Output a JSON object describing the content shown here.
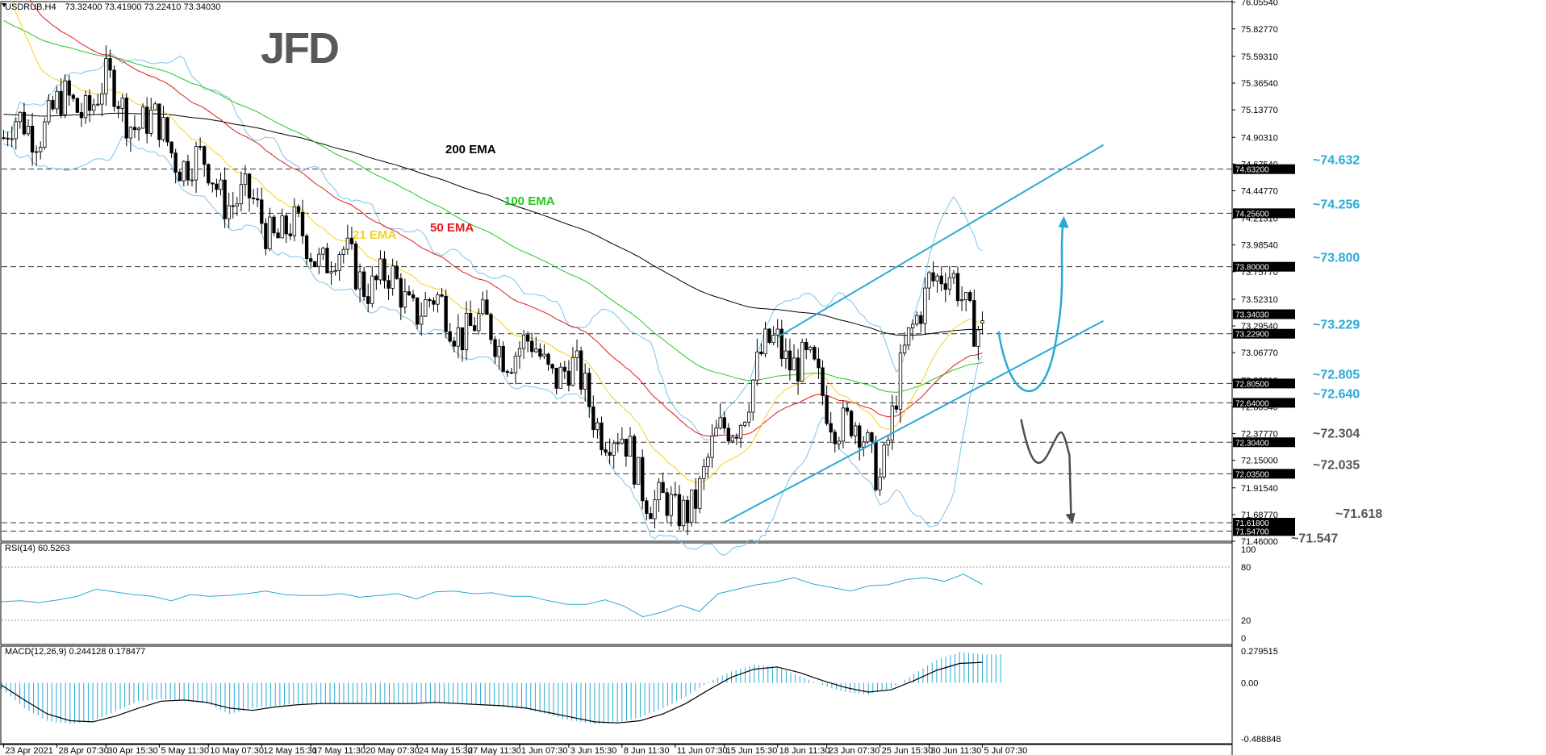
{
  "header": {
    "symbol": "USDRUB,H4",
    "ohlc": "73.32400 73.41900 73.22410 73.34030"
  },
  "logo": {
    "text": "JFD",
    "color": "#58595b"
  },
  "colors": {
    "ema200": "#000000",
    "ema100": "#22c922",
    "ema50": "#e3181b",
    "ema21": "#f2d21d",
    "bollinger": "#7cc3e8",
    "bull": "#ffffff",
    "bear": "#000000",
    "channel": "#29a9d6",
    "level_blue": "#29a9d6",
    "level_dark": "#555555",
    "rsi": "#29a9d6",
    "macd_hist": "#29a9d6",
    "macd_signal": "#000000",
    "dashed": "#333333"
  },
  "chart_data": [
    {
      "type": "candlestick",
      "title": "USDRUB,H4",
      "ylim": [
        71.46,
        76.06
      ],
      "y_ticks": [
        "76.05540",
        "75.82770",
        "75.59310",
        "75.36540",
        "75.13770",
        "74.90310",
        "74.67540",
        "74.44770",
        "74.21310",
        "73.98540",
        "73.75770",
        "73.52310",
        "73.29540",
        "73.06770",
        "72.83310",
        "72.60540",
        "72.37770",
        "72.15000",
        "71.91540",
        "71.68770",
        "71.46000"
      ],
      "x_ticks": [
        "23 Apr 2021",
        "28 Apr 07:30",
        "30 Apr 15:30",
        "5 May 11:30",
        "10 May 07:30",
        "12 May 15:30",
        "17 May 11:30",
        "20 May 07:30",
        "24 May 15:30",
        "27 May 11:30",
        "1 Jun 07:30",
        "3 Jun 15:30",
        "8 Jun 11:30",
        "11 Jun 07:30",
        "15 Jun 15:30",
        "18 Jun 11:30",
        "23 Jun 07:30",
        "25 Jun 15:30",
        "30 Jun 11:30",
        "5 Jul 07:30"
      ],
      "x_start": "23 Apr 2021",
      "x_end": "5 Jul 07:30",
      "candle_count": 240,
      "indicators": [
        {
          "name": "200 EMA",
          "color": "#000000"
        },
        {
          "name": "100 EMA",
          "color": "#22c922"
        },
        {
          "name": "50 EMA",
          "color": "#e3181b"
        },
        {
          "name": "21 EMA",
          "color": "#f2d21d"
        }
      ],
      "levels": [
        {
          "label": "~74.632",
          "price": 74.632,
          "box": "74.63200",
          "color": "#29a9d6"
        },
        {
          "label": "~74.256",
          "price": 74.256,
          "box": "74.25600",
          "color": "#29a9d6"
        },
        {
          "label": "~73.800",
          "price": 73.8,
          "box": "73.80000",
          "color": "#29a9d6"
        },
        {
          "label": "~73.229",
          "price": 73.229,
          "box": "73.22900",
          "color": "#29a9d6"
        },
        {
          "label": "~72.805",
          "price": 72.805,
          "box": "72.80500",
          "color": "#29a9d6"
        },
        {
          "label": "~72.640",
          "price": 72.64,
          "box": "72.64000",
          "color": "#29a9d6"
        },
        {
          "label": "~72.304",
          "price": 72.304,
          "box": "72.30400",
          "color": "#555555"
        },
        {
          "label": "~72.035",
          "price": 72.035,
          "box": "72.03500",
          "color": "#555555"
        },
        {
          "label": "~71.618",
          "price": 71.618,
          "box": "71.61800",
          "color": "#555555"
        },
        {
          "label": "~71.547",
          "price": 71.547,
          "box": "71.54700",
          "color": "#555555"
        }
      ],
      "current_price": "73.34030",
      "channel": {
        "upper": {
          "from": {
            "x": "18 Jun 11:30",
            "y": 73.2
          },
          "to": {
            "x": "5 Jul 07:30",
            "y": 74.23
          }
        },
        "lower": {
          "from": {
            "x": "15 Jun 15:30",
            "y": 71.62
          },
          "to": {
            "x": "5 Jul 07:30",
            "y": 72.79
          }
        }
      },
      "scenarios": [
        "bullish: dip toward ~72.805 then rally to ~74.256",
        "bearish: break below channel toward ~71.618"
      ],
      "key_closes": [
        {
          "x": "23 Apr 2021",
          "y": 74.9
        },
        {
          "x": "30 Apr 15:30",
          "y": 75.3
        },
        {
          "x": "12 May 15:30",
          "y": 74.2
        },
        {
          "x": "24 May 15:30",
          "y": 73.5
        },
        {
          "x": "3 Jun 15:30",
          "y": 72.9
        },
        {
          "x": "11 Jun 07:30",
          "y": 71.6
        },
        {
          "x": "18 Jun 11:30",
          "y": 73.2
        },
        {
          "x": "25 Jun 15:30",
          "y": 72.1
        },
        {
          "x": "30 Jun 11:30",
          "y": 73.8
        },
        {
          "x": "5 Jul 07:30",
          "y": 73.34
        }
      ]
    },
    {
      "type": "line",
      "title": "RSI(14) 60.5263",
      "ylim": [
        0,
        100
      ],
      "levels": [
        80,
        20
      ],
      "y_ticks": [
        "100",
        "80",
        "20",
        "0"
      ],
      "values": [
        41,
        42,
        40,
        43,
        47,
        55,
        52,
        49,
        47,
        42,
        49,
        47,
        48,
        50,
        53,
        49,
        48,
        48,
        50,
        46,
        48,
        50,
        44,
        52,
        53,
        50,
        51,
        47,
        47,
        42,
        38,
        38,
        43,
        36,
        24,
        29,
        37,
        30,
        50,
        55,
        60,
        63,
        68,
        61,
        57,
        53,
        59,
        60,
        66,
        68,
        64,
        72,
        60.5
      ]
    },
    {
      "type": "bar",
      "title": "MACD(12,26,9) 0.244128 0.178477",
      "ylim": [
        -0.488848,
        0.279515
      ],
      "y_ticks": [
        "0.279515",
        "0.00",
        "-0.488848"
      ],
      "histogram": [
        -0.05,
        -0.22,
        -0.33,
        -0.36,
        -0.33,
        -0.25,
        -0.16,
        -0.14,
        -0.15,
        -0.18,
        -0.27,
        -0.22,
        -0.2,
        -0.18,
        -0.18,
        -0.18,
        -0.17,
        -0.18,
        -0.18,
        -0.17,
        -0.18,
        -0.19,
        -0.21,
        -0.23,
        -0.28,
        -0.33,
        -0.36,
        -0.35,
        -0.3,
        -0.22,
        -0.12,
        0.01,
        0.1,
        0.16,
        0.14,
        0.06,
        -0.02,
        -0.08,
        -0.1,
        -0.05,
        0.08,
        0.2,
        0.27,
        0.25
      ],
      "signal": [
        -0.02,
        -0.15,
        -0.27,
        -0.33,
        -0.34,
        -0.29,
        -0.22,
        -0.16,
        -0.15,
        -0.17,
        -0.22,
        -0.24,
        -0.21,
        -0.19,
        -0.18,
        -0.18,
        -0.18,
        -0.18,
        -0.18,
        -0.17,
        -0.18,
        -0.19,
        -0.2,
        -0.22,
        -0.26,
        -0.3,
        -0.34,
        -0.35,
        -0.33,
        -0.27,
        -0.18,
        -0.06,
        0.05,
        0.12,
        0.14,
        0.09,
        0.02,
        -0.04,
        -0.08,
        -0.06,
        0.02,
        0.11,
        0.17,
        0.18
      ]
    }
  ]
}
